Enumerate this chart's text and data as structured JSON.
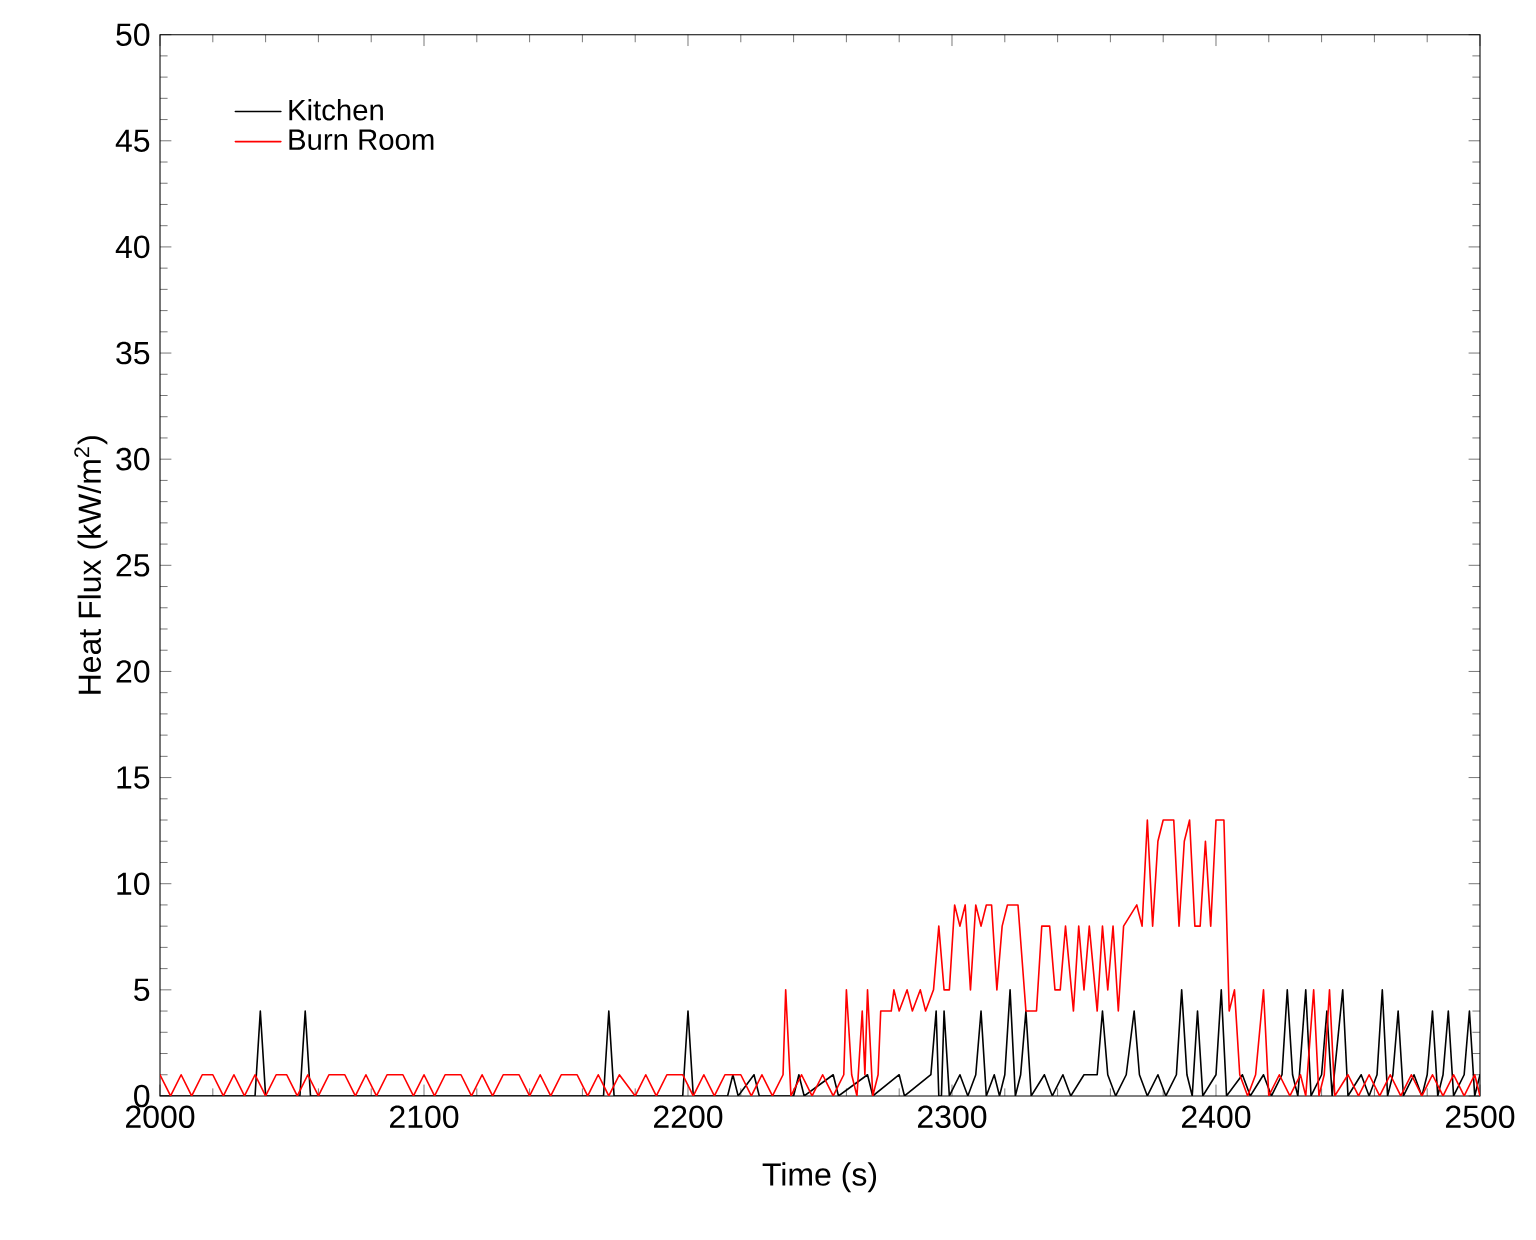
{
  "chart_data": {
    "type": "line",
    "xlabel": "Time (s)",
    "ylabel": "Heat Flux (kW/m$^{2}$)",
    "xlim": [
      2000,
      2500
    ],
    "xticks": [
      2000,
      2100,
      2200,
      2300,
      2400,
      2500
    ],
    "ylim": [
      0,
      50
    ],
    "yticks": [
      0,
      5,
      10,
      15,
      20,
      25,
      30,
      35,
      40,
      45,
      50
    ],
    "legend": "top left",
    "grid": false,
    "marker": "none",
    "line_style": "solid",
    "series": [
      {
        "name": "Kitchen",
        "color": "#000000",
        "x": [
          2000,
          2036,
          2038,
          2040,
          2053,
          2055,
          2057,
          2168,
          2170,
          2172,
          2198,
          2200,
          2202,
          2215,
          2217,
          2219,
          2225,
          2227,
          2240,
          2242,
          2244,
          2255,
          2257,
          2268,
          2270,
          2280,
          2282,
          2292,
          2294,
          2295,
          2296,
          2297,
          2299,
          2303,
          2306,
          2309,
          2311,
          2313,
          2316,
          2318,
          2320,
          2322,
          2324,
          2326,
          2328,
          2330,
          2335,
          2338,
          2342,
          2345,
          2350,
          2355,
          2357,
          2359,
          2362,
          2366,
          2369,
          2371,
          2374,
          2378,
          2381,
          2385,
          2387,
          2389,
          2391,
          2393,
          2395,
          2400,
          2402,
          2404,
          2410,
          2413,
          2418,
          2421,
          2425,
          2427,
          2429,
          2431,
          2434,
          2436,
          2440,
          2442,
          2444,
          2448,
          2450,
          2455,
          2458,
          2461,
          2463,
          2465,
          2467,
          2469,
          2471,
          2475,
          2478,
          2480,
          2482,
          2484,
          2486,
          2488,
          2490,
          2494,
          2496,
          2498,
          2500
        ],
        "values": [
          0,
          0,
          4,
          0,
          0,
          4,
          0,
          0,
          4,
          0,
          0,
          4,
          0,
          0,
          1,
          0,
          1,
          0,
          0,
          1,
          0,
          1,
          0,
          1,
          0,
          1,
          0,
          1,
          4,
          0,
          0,
          4,
          0,
          1,
          0,
          1,
          4,
          0,
          1,
          0,
          1,
          5,
          0,
          1,
          4,
          0,
          1,
          0,
          1,
          0,
          1,
          1,
          4,
          1,
          0,
          1,
          4,
          1,
          0,
          1,
          0,
          1,
          5,
          1,
          0,
          4,
          0,
          1,
          5,
          0,
          1,
          0,
          1,
          0,
          1,
          5,
          1,
          0,
          5,
          0,
          1,
          4,
          0,
          5,
          0,
          1,
          0,
          1,
          5,
          0,
          1,
          4,
          0,
          1,
          0,
          1,
          4,
          0,
          1,
          4,
          0,
          1,
          4,
          0,
          1
        ]
      },
      {
        "name": "Burn Room",
        "color": "#ff0000",
        "x": [
          2000,
          2004,
          2008,
          2012,
          2016,
          2020,
          2024,
          2028,
          2032,
          2036,
          2040,
          2044,
          2048,
          2052,
          2056,
          2060,
          2064,
          2070,
          2074,
          2078,
          2082,
          2086,
          2092,
          2096,
          2100,
          2104,
          2108,
          2114,
          2118,
          2122,
          2126,
          2130,
          2136,
          2140,
          2144,
          2148,
          2152,
          2158,
          2162,
          2166,
          2170,
          2174,
          2180,
          2184,
          2188,
          2192,
          2198,
          2202,
          2206,
          2210,
          2214,
          2220,
          2224,
          2228,
          2232,
          2236,
          2237,
          2239,
          2243,
          2247,
          2251,
          2255,
          2259,
          2260,
          2262,
          2264,
          2266,
          2267,
          2268,
          2270,
          2272,
          2273,
          2277,
          2278,
          2280,
          2283,
          2285,
          2288,
          2290,
          2293,
          2295,
          2297,
          2299,
          2301,
          2303,
          2305,
          2307,
          2309,
          2311,
          2313,
          2315,
          2317,
          2319,
          2321,
          2325,
          2328,
          2332,
          2334,
          2337,
          2339,
          2341,
          2343,
          2346,
          2348,
          2350,
          2352,
          2355,
          2357,
          2359,
          2361,
          2363,
          2365,
          2370,
          2372,
          2374,
          2376,
          2378,
          2380,
          2384,
          2386,
          2388,
          2390,
          2392,
          2394,
          2396,
          2398,
          2400,
          2403,
          2405,
          2407,
          2409,
          2412,
          2415,
          2418,
          2420,
          2424,
          2428,
          2432,
          2434,
          2437,
          2439,
          2441,
          2443,
          2445,
          2450,
          2454,
          2458,
          2462,
          2466,
          2470,
          2474,
          2478,
          2482,
          2486,
          2490,
          2494,
          2498,
          2500
        ],
        "values": [
          1,
          0,
          1,
          0,
          1,
          1,
          0,
          1,
          0,
          1,
          0,
          1,
          1,
          0,
          1,
          0,
          1,
          1,
          0,
          1,
          0,
          1,
          1,
          0,
          1,
          0,
          1,
          1,
          0,
          1,
          0,
          1,
          1,
          0,
          1,
          0,
          1,
          1,
          0,
          1,
          0,
          1,
          0,
          1,
          0,
          1,
          1,
          0,
          1,
          0,
          1,
          1,
          0,
          1,
          0,
          1,
          5,
          0,
          1,
          0,
          1,
          0,
          1,
          5,
          1,
          0,
          4,
          1,
          5,
          0,
          1,
          4,
          4,
          5,
          4,
          5,
          4,
          5,
          4,
          5,
          8,
          5,
          5,
          9,
          8,
          9,
          5,
          9,
          8,
          9,
          9,
          5,
          8,
          9,
          9,
          4,
          4,
          8,
          8,
          5,
          5,
          8,
          4,
          8,
          5,
          8,
          4,
          8,
          5,
          8,
          4,
          8,
          9,
          8,
          13,
          8,
          12,
          13,
          13,
          8,
          12,
          13,
          8,
          8,
          12,
          8,
          13,
          13,
          4,
          5,
          1,
          0,
          1,
          5,
          0,
          1,
          0,
          1,
          0,
          5,
          0,
          1,
          5,
          0,
          1,
          0,
          1,
          0,
          1,
          0,
          1,
          0,
          1,
          0,
          1,
          0,
          1,
          0
        ]
      }
    ]
  }
}
